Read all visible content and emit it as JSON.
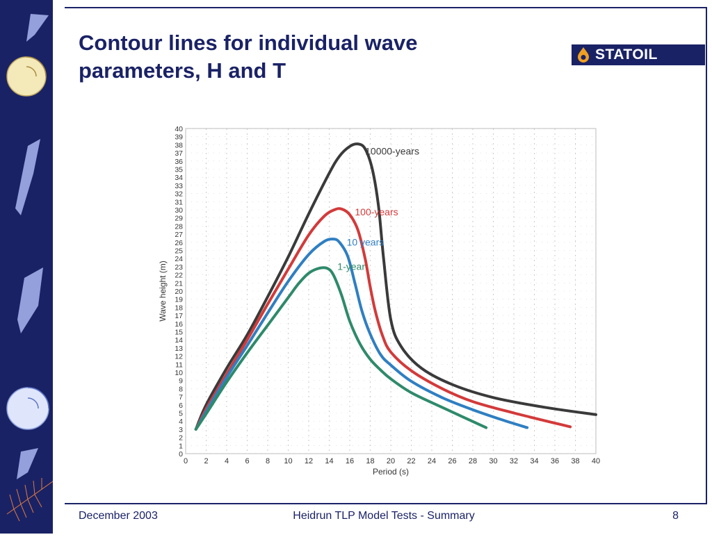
{
  "slide": {
    "title": "Contour lines for individual wave parameters, H and T",
    "logo_text": "STATOIL",
    "footer_left": "December 2003",
    "footer_center": "Heidrun TLP Model Tests - Summary",
    "page_number": "8"
  },
  "colors": {
    "brand": "#1a2266",
    "series_10000": "#3a3a3a",
    "series_100": "#d33a3a",
    "series_10": "#2f7fc2",
    "series_1": "#2e8a6a"
  },
  "chart_data": {
    "type": "line",
    "title": "",
    "xlabel": "Period (s)",
    "ylabel": "Wave height (m)",
    "xlim": [
      0,
      40
    ],
    "ylim": [
      0,
      40
    ],
    "xticks": [
      "0",
      "2",
      "4",
      "6",
      "8",
      "10",
      "12",
      "14",
      "16",
      "18",
      "20",
      "22",
      "24",
      "26",
      "28",
      "30",
      "32",
      "34",
      "36",
      "38",
      "40"
    ],
    "yticks": [
      "0",
      "1",
      "2",
      "3",
      "4",
      "5",
      "6",
      "7",
      "8",
      "9",
      "10",
      "11",
      "12",
      "13",
      "14",
      "15",
      "16",
      "17",
      "18",
      "19",
      "20",
      "21",
      "22",
      "23",
      "24",
      "25",
      "26",
      "27",
      "28",
      "29",
      "30",
      "31",
      "32",
      "33",
      "34",
      "35",
      "36",
      "37",
      "38",
      "39",
      "40"
    ],
    "grid": true,
    "series": [
      {
        "name": "10000-years",
        "label_at": [
          17.5,
          36.8
        ],
        "x": [
          1,
          2,
          4,
          6,
          8,
          10,
          12,
          14,
          15,
          16,
          16.8,
          17.5,
          18.2,
          18.8,
          19.3,
          20,
          21,
          23,
          26,
          30,
          35,
          40
        ],
        "y": [
          3,
          6,
          10.5,
          14.6,
          19.3,
          24.2,
          29.5,
          34.5,
          36.6,
          37.8,
          38.1,
          37.5,
          35.0,
          30.5,
          24,
          16.5,
          13.2,
          10.5,
          8.5,
          6.9,
          5.7,
          4.8
        ]
      },
      {
        "name": "100-years",
        "label_at": [
          16.5,
          29.3
        ],
        "x": [
          1,
          2,
          4,
          6,
          8,
          10,
          12,
          13.5,
          14.5,
          15.2,
          16,
          16.8,
          17.5,
          18,
          18.5,
          19.2,
          20,
          22,
          25,
          28,
          32,
          37.5
        ],
        "y": [
          3,
          5.5,
          9.8,
          14,
          18.4,
          22.7,
          26.9,
          29.2,
          30.0,
          30.1,
          29.4,
          27.5,
          24.0,
          20.5,
          17.5,
          14.5,
          12.5,
          10.2,
          8.0,
          6.4,
          5.0,
          3.3
        ]
      },
      {
        "name": "10 years",
        "label_at": [
          15.7,
          25.6
        ],
        "x": [
          1,
          2,
          4,
          6,
          8,
          10,
          12,
          13.5,
          14.4,
          15,
          15.8,
          16.5,
          17.2,
          18,
          19,
          20,
          22,
          25,
          28,
          31,
          33.3
        ],
        "y": [
          3,
          5.2,
          9.4,
          13.3,
          17.3,
          21.2,
          24.5,
          26.1,
          26.4,
          26.0,
          24.3,
          21.0,
          17.5,
          14.7,
          12.2,
          10.9,
          8.9,
          6.9,
          5.4,
          4.1,
          3.2
        ]
      },
      {
        "name": "1-year",
        "label_at": [
          14.8,
          22.6
        ],
        "x": [
          1,
          2,
          4,
          6,
          8,
          10,
          11,
          12,
          13,
          13.8,
          14.4,
          15.2,
          16,
          17,
          18,
          19,
          20,
          22,
          25,
          29.3
        ],
        "y": [
          3,
          4.9,
          8.8,
          12.4,
          15.8,
          19.2,
          20.9,
          22.2,
          22.8,
          22.8,
          22.0,
          19.5,
          16.3,
          13.5,
          11.6,
          10.3,
          9.2,
          7.5,
          5.7,
          3.2
        ]
      }
    ]
  }
}
